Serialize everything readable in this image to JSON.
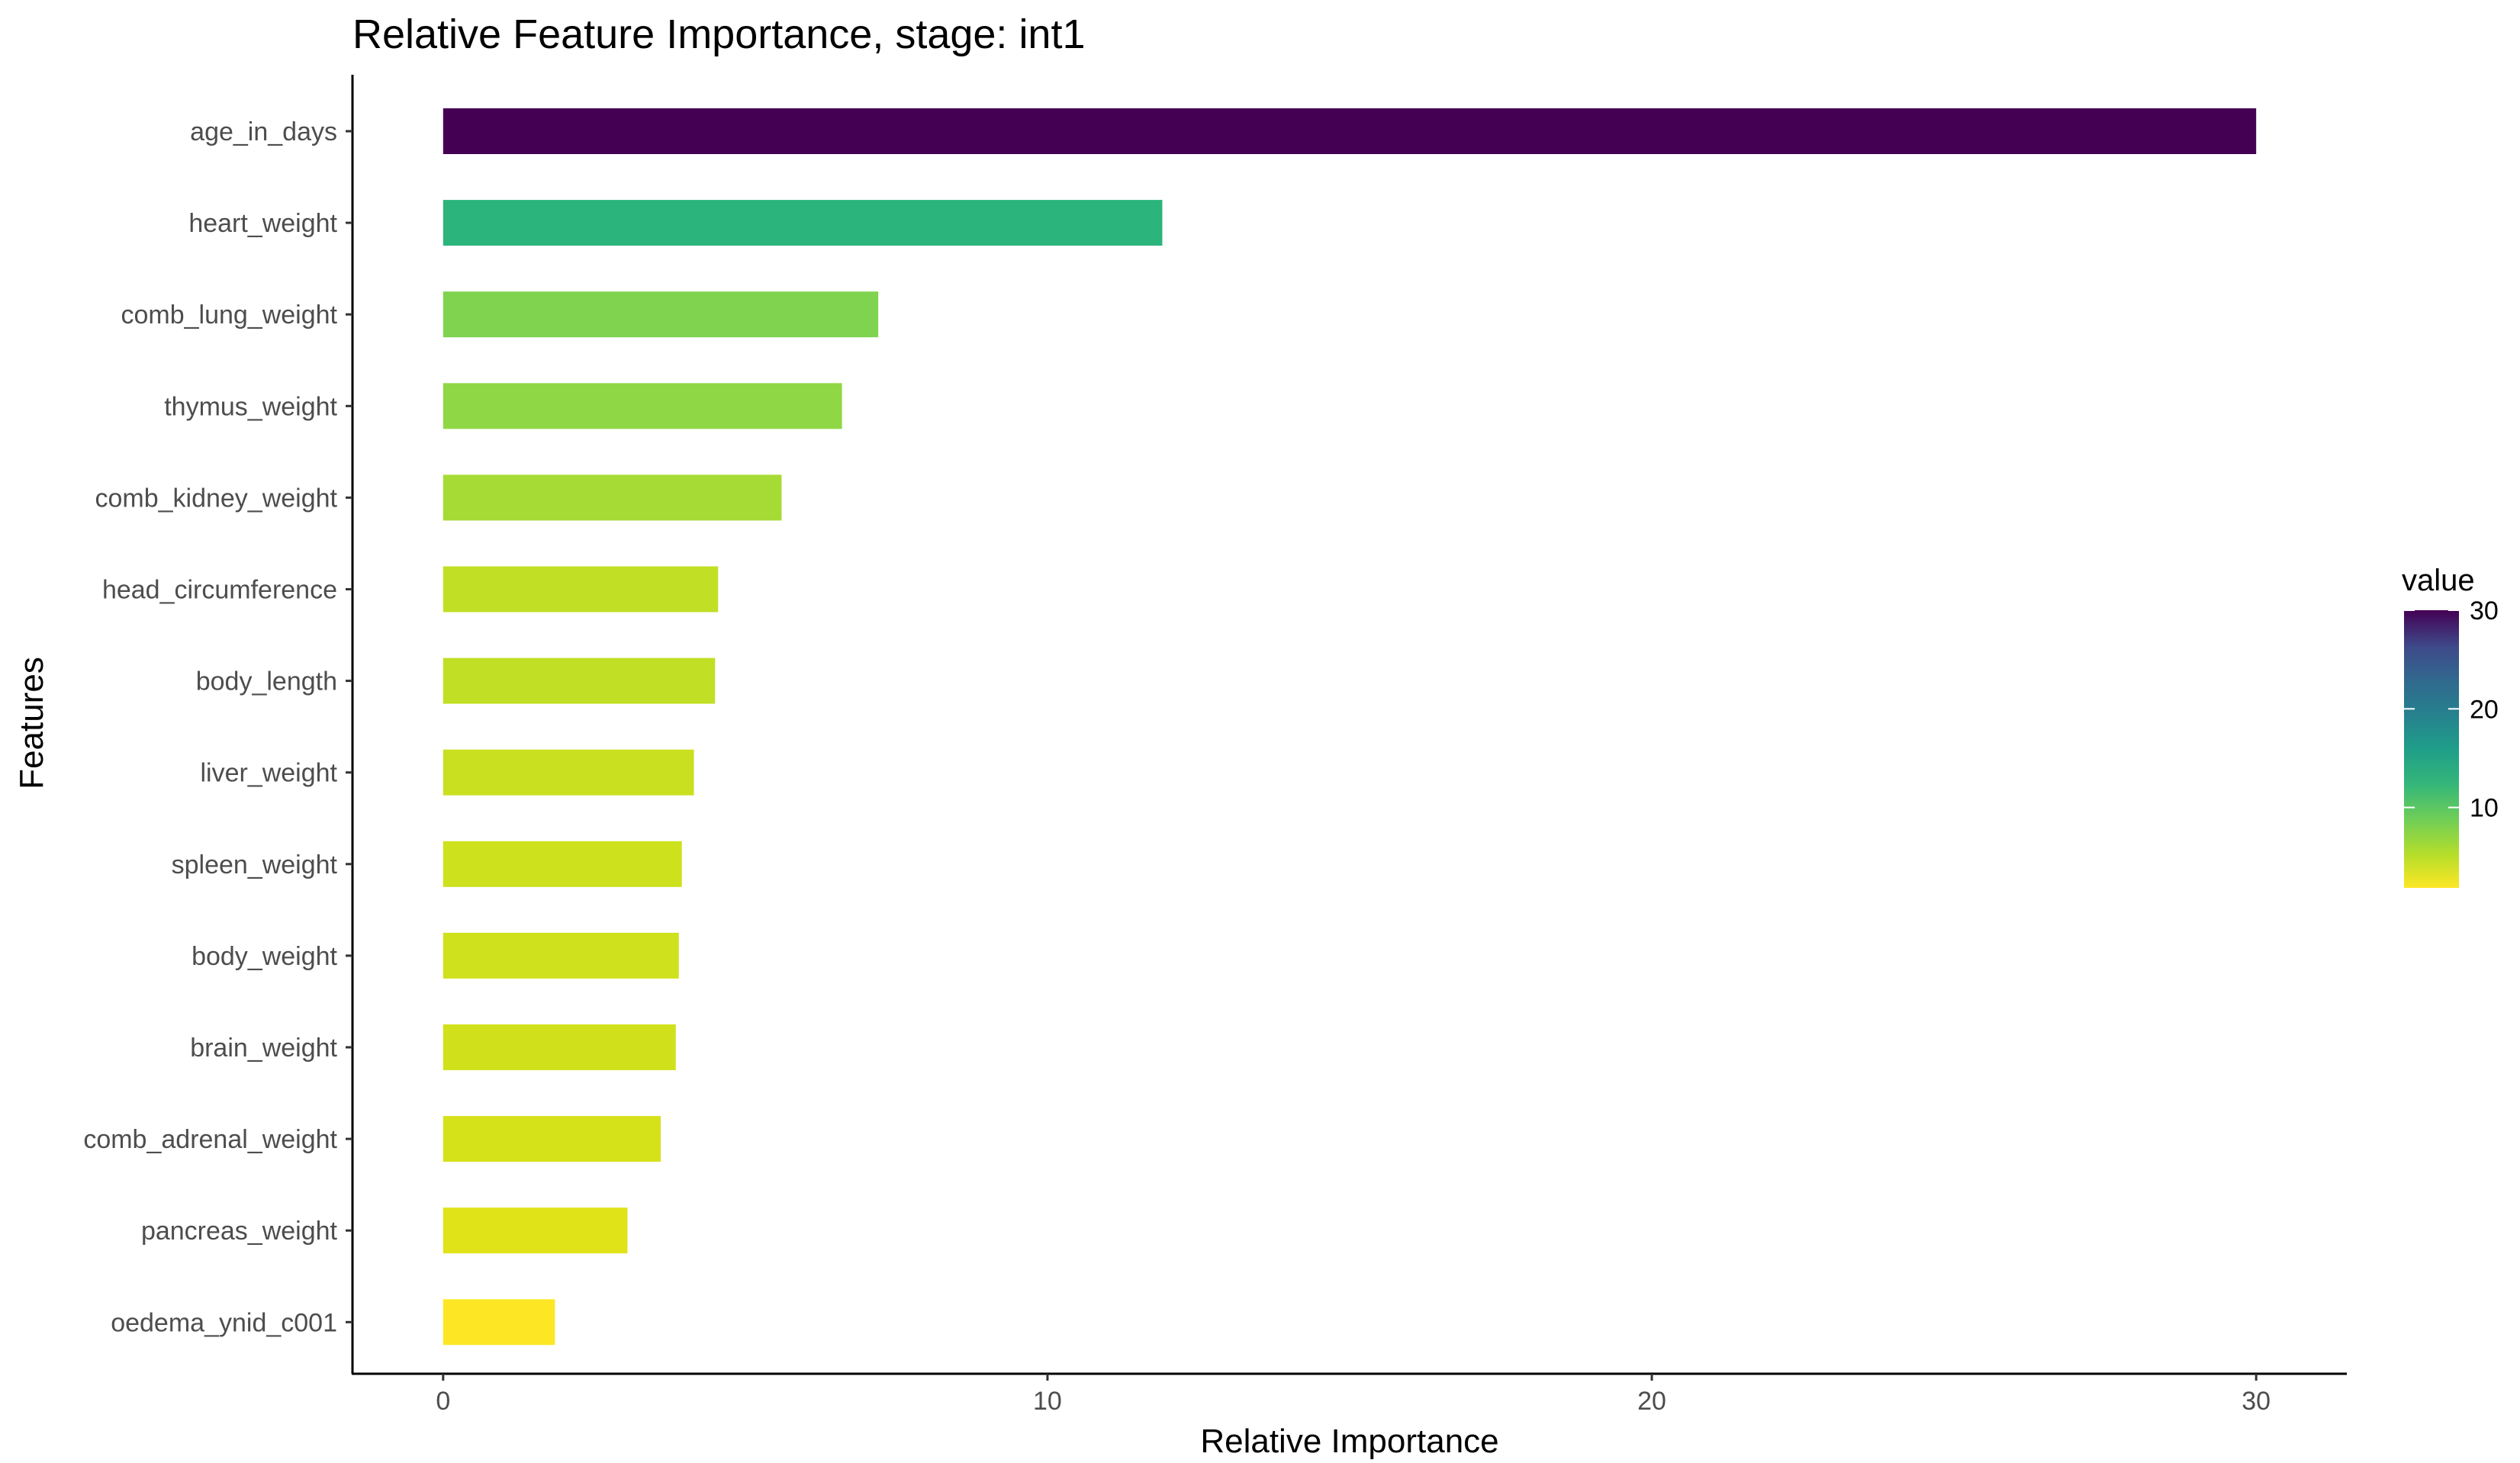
{
  "chart_data": {
    "type": "bar",
    "orientation": "horizontal",
    "title": "Relative Feature Importance, stage: int1",
    "xlabel": "Relative Importance",
    "ylabel": "Features",
    "xlim": [
      -1.5,
      31.5
    ],
    "xticks": [
      0,
      10,
      20,
      30
    ],
    "xtick_labels": [
      "0",
      "10",
      "20",
      "30"
    ],
    "grid": false,
    "categories": [
      "age_in_days",
      "heart_weight",
      "comb_lung_weight",
      "thymus_weight",
      "comb_kidney_weight",
      "head_circumference",
      "body_length",
      "liver_weight",
      "spleen_weight",
      "body_weight",
      "brain_weight",
      "comb_adrenal_weight",
      "pancreas_weight",
      "oedema_ynid_c001"
    ],
    "values": [
      30.0,
      11.9,
      7.2,
      6.6,
      5.6,
      4.55,
      4.5,
      4.15,
      3.95,
      3.9,
      3.85,
      3.6,
      3.05,
      1.85
    ],
    "bar_colors": [
      "#440154",
      "#2bb47c",
      "#7fd34e",
      "#8fd744",
      "#a6db35",
      "#c0df25",
      "#c1df24",
      "#c9e020",
      "#cde11d",
      "#cfe11c",
      "#d0e11c",
      "#d5e21a",
      "#e0e318",
      "#fde725"
    ],
    "legend": {
      "title": "value",
      "placement": "right",
      "colormap": "viridis",
      "range": [
        1.85,
        30.0
      ],
      "ticks": [
        10,
        20,
        30
      ],
      "tick_labels": [
        "10",
        "20",
        "30"
      ]
    }
  }
}
